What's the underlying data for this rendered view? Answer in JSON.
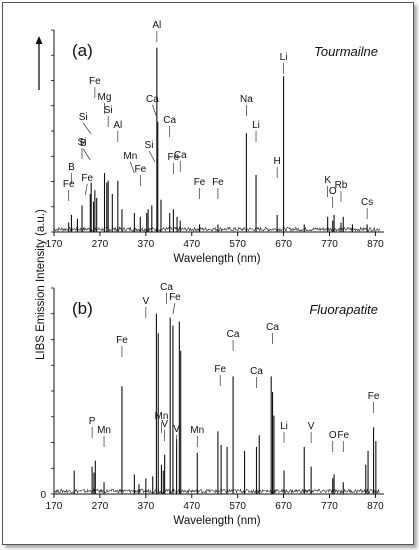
{
  "y_axis_label": "LIBS Emission Intensity (a.u.)",
  "chart_data": [
    {
      "panel": "(a)",
      "type": "line",
      "title": "Tourmailne",
      "xlabel": "Wavelength (nm)",
      "ylabel": "LIBS Emission Intensity (a.u.)",
      "xlim": [
        170,
        880
      ],
      "x_ticks": [
        170,
        270,
        370,
        470,
        570,
        670,
        770,
        870
      ],
      "y_ticks_labeled": false,
      "grid": false,
      "peaks": [
        {
          "x": 202,
          "y": 0.05
        },
        {
          "x": 208,
          "y": 0.09
        },
        {
          "x": 221,
          "y": 0.07
        },
        {
          "x": 231,
          "y": 0.14
        },
        {
          "x": 249,
          "y": 0.2
        },
        {
          "x": 251,
          "y": 0.26
        },
        {
          "x": 256,
          "y": 0.16
        },
        {
          "x": 259,
          "y": 0.22
        },
        {
          "x": 263,
          "y": 0.18
        },
        {
          "x": 280,
          "y": 0.31
        },
        {
          "x": 285,
          "y": 0.26
        },
        {
          "x": 288,
          "y": 0.27
        },
        {
          "x": 297,
          "y": 0.2
        },
        {
          "x": 309,
          "y": 0.27
        },
        {
          "x": 318,
          "y": 0.12
        },
        {
          "x": 345,
          "y": 0.1
        },
        {
          "x": 358,
          "y": 0.08
        },
        {
          "x": 372,
          "y": 0.1
        },
        {
          "x": 375,
          "y": 0.12
        },
        {
          "x": 383,
          "y": 0.14
        },
        {
          "x": 394,
          "y": 0.97
        },
        {
          "x": 396,
          "y": 0.58
        },
        {
          "x": 403,
          "y": 0.17
        },
        {
          "x": 422,
          "y": 0.1
        },
        {
          "x": 430,
          "y": 0.12
        },
        {
          "x": 438,
          "y": 0.08
        },
        {
          "x": 445,
          "y": 0.06
        },
        {
          "x": 487,
          "y": 0.04
        },
        {
          "x": 527,
          "y": 0.04
        },
        {
          "x": 589,
          "y": 0.52
        },
        {
          "x": 610,
          "y": 0.3
        },
        {
          "x": 656,
          "y": 0.09
        },
        {
          "x": 670,
          "y": 0.82
        },
        {
          "x": 715,
          "y": 0.04
        },
        {
          "x": 766,
          "y": 0.08
        },
        {
          "x": 777,
          "y": 0.06
        },
        {
          "x": 780,
          "y": 0.09
        },
        {
          "x": 795,
          "y": 0.05
        },
        {
          "x": 800,
          "y": 0.08
        },
        {
          "x": 820,
          "y": 0.04
        },
        {
          "x": 852,
          "y": 0.04
        }
      ],
      "annotations": [
        {
          "label": "Al",
          "x": 394
        },
        {
          "label": "Li",
          "x": 670
        },
        {
          "label": "Na",
          "x": 589
        },
        {
          "label": "Li",
          "x": 610
        },
        {
          "label": "H",
          "x": 656
        },
        {
          "label": "K",
          "x": 766
        },
        {
          "label": "O",
          "x": 777
        },
        {
          "label": "Rb",
          "x": 795
        },
        {
          "label": "Cs",
          "x": 852
        },
        {
          "label": "Fe",
          "x": 259
        },
        {
          "label": "Mg",
          "x": 280
        },
        {
          "label": "Si",
          "x": 288
        },
        {
          "label": "Al",
          "x": 309
        },
        {
          "label": "Si",
          "x": 251
        },
        {
          "label": "B",
          "x": 249
        },
        {
          "label": "Si",
          "x": 231
        },
        {
          "label": "B",
          "x": 208
        },
        {
          "label": "Fe",
          "x": 202
        },
        {
          "label": "Fe",
          "x": 238
        },
        {
          "label": "Ca",
          "x": 393
        },
        {
          "label": "Ca",
          "x": 422
        },
        {
          "label": "Si",
          "x": 390
        },
        {
          "label": "Mn",
          "x": 345
        },
        {
          "label": "Fe",
          "x": 358
        },
        {
          "label": "Fe",
          "x": 430
        },
        {
          "label": "Ca",
          "x": 445
        },
        {
          "label": "Fe",
          "x": 487
        },
        {
          "label": "Fe",
          "x": 527
        }
      ]
    },
    {
      "panel": "(b)",
      "type": "line",
      "title": "Fluorapatite",
      "xlabel": "Wavelength (nm)",
      "ylabel": "LIBS Emission Intensity (a.u.)",
      "xlim": [
        170,
        880
      ],
      "x_ticks": [
        170,
        270,
        370,
        470,
        570,
        670,
        770,
        870
      ],
      "y_ticks": [
        0
      ],
      "grid": false,
      "peaks": [
        {
          "x": 214,
          "y": 0.12
        },
        {
          "x": 253,
          "y": 0.14
        },
        {
          "x": 257,
          "y": 0.11
        },
        {
          "x": 260,
          "y": 0.17
        },
        {
          "x": 279,
          "y": 0.06
        },
        {
          "x": 318,
          "y": 0.55
        },
        {
          "x": 345,
          "y": 0.1
        },
        {
          "x": 355,
          "y": 0.05
        },
        {
          "x": 370,
          "y": 0.08
        },
        {
          "x": 385,
          "y": 0.09
        },
        {
          "x": 393,
          "y": 0.92
        },
        {
          "x": 397,
          "y": 0.82
        },
        {
          "x": 404,
          "y": 0.15
        },
        {
          "x": 408,
          "y": 0.12
        },
        {
          "x": 411,
          "y": 0.2
        },
        {
          "x": 423,
          "y": 0.9
        },
        {
          "x": 429,
          "y": 0.86
        },
        {
          "x": 437,
          "y": 0.28
        },
        {
          "x": 443,
          "y": 0.88
        },
        {
          "x": 446,
          "y": 0.73
        },
        {
          "x": 482,
          "y": 0.21
        },
        {
          "x": 527,
          "y": 0.32
        },
        {
          "x": 534,
          "y": 0.25
        },
        {
          "x": 547,
          "y": 0.24
        },
        {
          "x": 560,
          "y": 0.6
        },
        {
          "x": 585,
          "y": 0.22
        },
        {
          "x": 611,
          "y": 0.24
        },
        {
          "x": 617,
          "y": 0.3
        },
        {
          "x": 643,
          "y": 0.6
        },
        {
          "x": 646,
          "y": 0.52
        },
        {
          "x": 649,
          "y": 0.4
        },
        {
          "x": 671,
          "y": 0.12
        },
        {
          "x": 715,
          "y": 0.24
        },
        {
          "x": 730,
          "y": 0.14
        },
        {
          "x": 777,
          "y": 0.08
        },
        {
          "x": 780,
          "y": 0.1
        },
        {
          "x": 800,
          "y": 0.06
        },
        {
          "x": 849,
          "y": 0.15
        },
        {
          "x": 854,
          "y": 0.22
        },
        {
          "x": 866,
          "y": 0.34
        },
        {
          "x": 871,
          "y": 0.27
        }
      ],
      "annotations": [
        {
          "label": "Ca",
          "x": 415
        },
        {
          "label": "V",
          "x": 370
        },
        {
          "label": "Fe",
          "x": 429
        },
        {
          "label": "Fe",
          "x": 318
        },
        {
          "label": "Ca",
          "x": 560
        },
        {
          "label": "Ca",
          "x": 646
        },
        {
          "label": "Fe",
          "x": 532
        },
        {
          "label": "Ca",
          "x": 611
        },
        {
          "label": "Mn",
          "x": 482
        },
        {
          "label": "V",
          "x": 437
        },
        {
          "label": "V",
          "x": 411
        },
        {
          "label": "Mn",
          "x": 404
        },
        {
          "label": "P",
          "x": 253
        },
        {
          "label": "Mn",
          "x": 279
        },
        {
          "label": "Li",
          "x": 671
        },
        {
          "label": "V",
          "x": 730
        },
        {
          "label": "O",
          "x": 777
        },
        {
          "label": "Fe",
          "x": 800
        },
        {
          "label": "Fe",
          "x": 866
        }
      ]
    }
  ]
}
